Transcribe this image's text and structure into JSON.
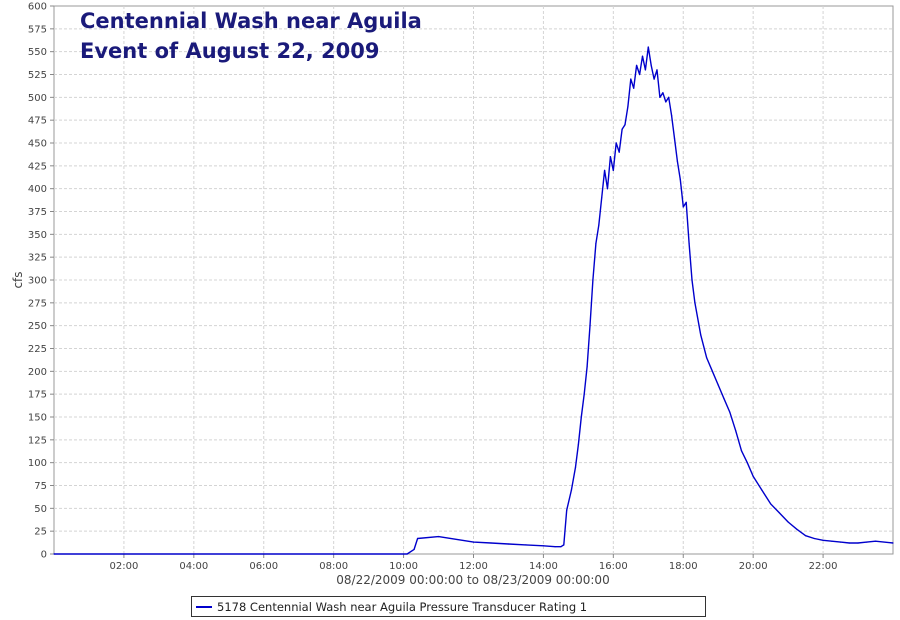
{
  "chart_data": {
    "type": "line",
    "title": [
      "Centennial Wash near Aguila",
      "Event of August 22, 2009"
    ],
    "xlabel": "08/22/2009 00:00:00 to 08/23/2009 00:00:00",
    "ylabel": "cfs",
    "xlim": [
      "00:00",
      "24:00"
    ],
    "ylim": [
      0,
      600
    ],
    "x_ticks": [
      "02:00",
      "04:00",
      "06:00",
      "08:00",
      "10:00",
      "12:00",
      "14:00",
      "16:00",
      "18:00",
      "20:00",
      "22:00"
    ],
    "y_ticks": [
      0,
      25,
      50,
      75,
      100,
      125,
      150,
      175,
      200,
      225,
      250,
      275,
      300,
      325,
      350,
      375,
      400,
      425,
      450,
      475,
      500,
      525,
      550,
      575,
      600
    ],
    "grid": true,
    "legend_position": "bottom",
    "series": [
      {
        "name": "5178 Centennial Wash near Aguila Pressure Transducer Rating 1",
        "color": "#0000cc",
        "x": [
          "00:00",
          "10:06",
          "10:18",
          "10:24",
          "11:00",
          "12:00",
          "12:30",
          "13:00",
          "13:30",
          "14:00",
          "14:20",
          "14:30",
          "14:35",
          "14:40",
          "14:48",
          "14:55",
          "15:00",
          "15:05",
          "15:10",
          "15:15",
          "15:20",
          "15:25",
          "15:30",
          "15:35",
          "15:40",
          "15:45",
          "15:50",
          "15:55",
          "16:00",
          "16:05",
          "16:10",
          "16:15",
          "16:20",
          "16:25",
          "16:30",
          "16:35",
          "16:40",
          "16:45",
          "16:50",
          "16:55",
          "17:00",
          "17:05",
          "17:10",
          "17:15",
          "17:20",
          "17:25",
          "17:30",
          "17:35",
          "17:40",
          "17:45",
          "17:50",
          "17:55",
          "18:00",
          "18:05",
          "18:10",
          "18:15",
          "18:20",
          "18:30",
          "18:40",
          "18:50",
          "19:00",
          "19:10",
          "19:20",
          "19:30",
          "19:40",
          "19:50",
          "20:00",
          "20:15",
          "20:30",
          "20:45",
          "21:00",
          "21:15",
          "21:30",
          "21:45",
          "22:00",
          "22:15",
          "22:30",
          "22:45",
          "23:00",
          "23:15",
          "23:30",
          "24:00"
        ],
        "y": [
          0,
          0,
          5,
          17,
          19,
          13,
          12,
          11,
          10,
          9,
          8,
          8,
          10,
          48,
          70,
          95,
          120,
          150,
          175,
          205,
          250,
          300,
          340,
          360,
          390,
          420,
          400,
          435,
          420,
          450,
          440,
          465,
          470,
          490,
          520,
          510,
          535,
          525,
          545,
          530,
          555,
          535,
          520,
          530,
          500,
          505,
          495,
          500,
          480,
          455,
          430,
          410,
          380,
          385,
          340,
          300,
          275,
          240,
          215,
          200,
          185,
          170,
          155,
          135,
          113,
          100,
          85,
          70,
          55,
          45,
          35,
          27,
          20,
          17,
          15,
          14,
          13,
          12,
          12,
          13,
          14,
          12
        ]
      }
    ]
  }
}
